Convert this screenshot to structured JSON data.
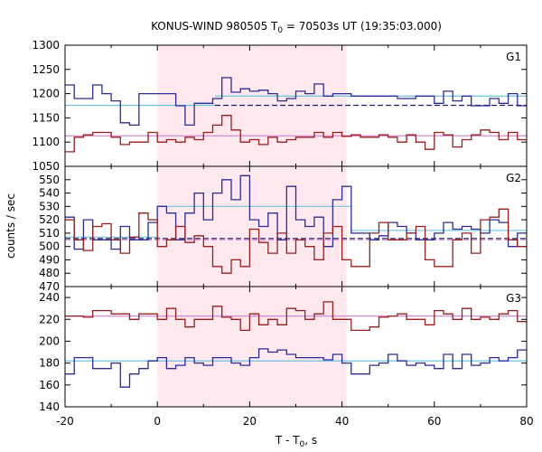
{
  "chart_data": {
    "type": "line",
    "title": "KONUS-WIND 980505 T",
    "title_sub": "0",
    "title_rest": " = 70503s UT (19:35:03.000)",
    "xlabel": "T - T",
    "xlabel_sub": "0",
    "xlabel_rest": ", s",
    "ylabel": "counts / sec",
    "xlim": [
      -20,
      80
    ],
    "x_ticks": [
      -20,
      0,
      20,
      40,
      60,
      80
    ],
    "x_tick_labels": [
      "-20",
      "0",
      "20",
      "40",
      "60",
      "80"
    ],
    "shade": {
      "x0": 0,
      "x1": 41
    },
    "step_x": [
      -20,
      -18,
      -16,
      -14,
      -12,
      -10,
      -8,
      -6,
      -4,
      -2,
      0,
      2,
      4,
      6,
      8,
      10,
      12,
      14,
      16,
      18,
      20,
      22,
      24,
      26,
      28,
      30,
      32,
      34,
      36,
      38,
      40,
      42,
      44,
      46,
      48,
      50,
      52,
      54,
      56,
      58,
      60,
      62,
      64,
      66,
      68,
      70,
      72,
      74,
      76,
      78
    ],
    "panels": [
      {
        "label": "G1",
        "ylim": [
          1050,
          1300
        ],
        "y_ticks": [
          1050,
          1100,
          1150,
          1200,
          1250,
          1300
        ],
        "y_tick_labels": [
          "1050",
          "1100",
          "1150",
          "1200",
          "1250",
          "1300"
        ],
        "series": [
          {
            "color": "#2b2b9b",
            "values": [
              1218,
              1190,
              1190,
              1218,
              1200,
              1185,
              1140,
              1135,
              1200,
              1200,
              1200,
              1200,
              1175,
              1135,
              1180,
              1180,
              1190,
              1233,
              1203,
              1210,
              1205,
              1207,
              1200,
              1185,
              1190,
              1205,
              1200,
              1220,
              1195,
              1200,
              1200,
              1195,
              1195,
              1195,
              1195,
              1195,
              1190,
              1190,
              1195,
              1195,
              1180,
              1205,
              1185,
              1195,
              1175,
              1175,
              1190,
              1180,
              1200,
              1175
            ]
          },
          {
            "color": "#9b1c1c",
            "values": [
              1080,
              1110,
              1115,
              1120,
              1120,
              1110,
              1095,
              1100,
              1100,
              1120,
              1100,
              1105,
              1100,
              1110,
              1105,
              1120,
              1135,
              1155,
              1125,
              1100,
              1105,
              1095,
              1110,
              1100,
              1105,
              1110,
              1110,
              1120,
              1110,
              1120,
              1112,
              1115,
              1110,
              1110,
              1115,
              1110,
              1100,
              1115,
              1100,
              1085,
              1120,
              1115,
              1090,
              1105,
              1115,
              1125,
              1120,
              1105,
              1120,
              1105
            ]
          }
        ],
        "fits": [
          {
            "color": "#6cc4dc",
            "x0": -20,
            "x1": 12.5,
            "y": 1176,
            "dashed": false
          },
          {
            "color": "#6cc4dc",
            "x0": 12.5,
            "x1": 80,
            "y": 1195,
            "dashed": false
          },
          {
            "color": "#1a1a6e",
            "x0": 12.5,
            "x1": 80,
            "y": 1176,
            "dashed": true
          },
          {
            "color": "#d68ad6",
            "x0": -20,
            "x1": 80,
            "y": 1113,
            "dashed": false
          }
        ]
      },
      {
        "label": "G2",
        "ylim": [
          470,
          560
        ],
        "y_ticks": [
          470,
          480,
          490,
          500,
          510,
          520,
          530,
          540,
          550
        ],
        "y_tick_labels": [
          "470",
          "480",
          "490",
          "500",
          "510",
          "520",
          "530",
          "540",
          "550"
        ],
        "series": [
          {
            "color": "#2b2b9b",
            "values": [
              522,
              498,
              520,
              505,
              505,
              498,
              515,
              505,
              505,
              518,
              530,
              525,
              505,
              525,
              540,
              520,
              540,
              550,
              535,
              553,
              520,
              515,
              525,
              505,
              545,
              520,
              515,
              522,
              500,
              535,
              545,
              510,
              510,
              505,
              508,
              518,
              515,
              510,
              505,
              505,
              510,
              518,
              513,
              515,
              513,
              510,
              520,
              518,
              500,
              510
            ]
          },
          {
            "color": "#9b1c1c",
            "values": [
              520,
              505,
              497,
              515,
              517,
              505,
              495,
              507,
              525,
              520,
              500,
              505,
              515,
              503,
              508,
              500,
              485,
              480,
              490,
              485,
              513,
              503,
              495,
              510,
              495,
              505,
              500,
              490,
              510,
              515,
              490,
              485,
              485,
              510,
              518,
              505,
              505,
              510,
              515,
              490,
              485,
              485,
              505,
              510,
              495,
              520,
              522,
              528,
              505,
              500
            ]
          }
        ],
        "fits": [
          {
            "color": "#6cc4dc",
            "x0": -20,
            "x1": 0.5,
            "y": 507,
            "dashed": false
          },
          {
            "color": "#6cc4dc",
            "x0": 0.5,
            "x1": 42,
            "y": 530,
            "dashed": false
          },
          {
            "color": "#6cc4dc",
            "x0": 42,
            "x1": 80,
            "y": 512,
            "dashed": false
          },
          {
            "color": "#1a1a6e",
            "x0": -20,
            "x1": 80,
            "y": 506,
            "dashed": true
          },
          {
            "color": "#d68ad6",
            "x0": -20,
            "x1": 80,
            "y": 505,
            "dashed": true
          }
        ]
      },
      {
        "label": "G3",
        "ylim": [
          140,
          250
        ],
        "y_ticks": [
          140,
          160,
          180,
          200,
          220,
          240
        ],
        "y_tick_labels": [
          "140",
          "160",
          "180",
          "200",
          "220",
          "240"
        ],
        "series": [
          {
            "color": "#2b2b9b",
            "values": [
              170,
              185,
              185,
              175,
              175,
              180,
              158,
              170,
              175,
              182,
              185,
              175,
              178,
              185,
              180,
              178,
              185,
              185,
              180,
              178,
              185,
              193,
              190,
              192,
              188,
              185,
              185,
              185,
              183,
              188,
              180,
              170,
              170,
              178,
              180,
              188,
              182,
              178,
              180,
              178,
              175,
              188,
              175,
              188,
              178,
              180,
              185,
              182,
              185,
              192
            ]
          },
          {
            "color": "#9b1c1c",
            "values": [
              223,
              223,
              222,
              228,
              228,
              225,
              225,
              220,
              225,
              225,
              220,
              230,
              220,
              213,
              220,
              220,
              232,
              222,
              220,
              210,
              225,
              215,
              220,
              215,
              230,
              228,
              220,
              225,
              236,
              220,
              220,
              210,
              210,
              213,
              222,
              223,
              225,
              220,
              220,
              215,
              228,
              225,
              220,
              230,
              220,
              222,
              220,
              225,
              228,
              218
            ]
          }
        ],
        "fits": [
          {
            "color": "#6cc4dc",
            "x0": -20,
            "x1": 80,
            "y": 182,
            "dashed": false
          },
          {
            "color": "#d68ad6",
            "x0": -20,
            "x1": 80,
            "y": 223,
            "dashed": false
          }
        ]
      }
    ]
  }
}
